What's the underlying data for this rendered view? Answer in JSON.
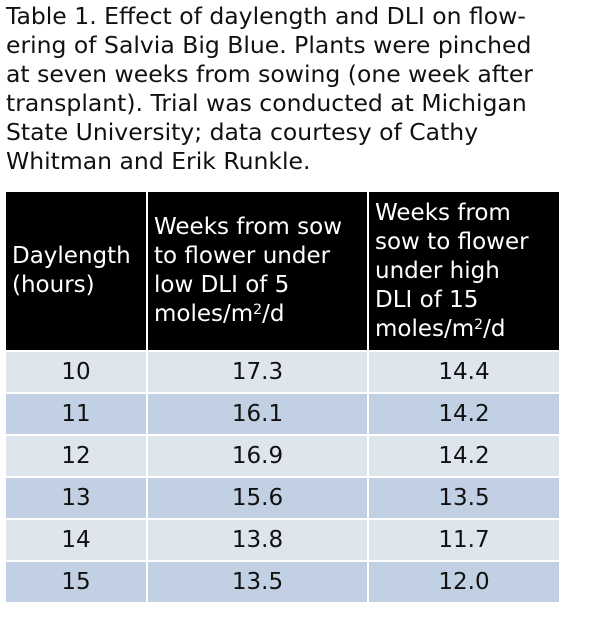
{
  "caption": {
    "lines": [
      "Table 1. Effect of daylength and DLI on flow-",
      "ering of Salvia Big Blue. Plants were pinched",
      "at seven weeks from sowing (one week after",
      "transplant). Trial was conducted at Michigan",
      "State University; data courtesy of Cathy",
      "Whitman and Erik Runkle."
    ]
  },
  "table": {
    "headers": {
      "col1": {
        "lines": [
          "Daylength",
          "(hours)"
        ]
      },
      "col2": {
        "lines": [
          "Weeks from sow",
          "to flower under",
          "low DLI of 5"
        ],
        "unit_pre": "moles/m",
        "unit_sup": "2",
        "unit_post": "/d"
      },
      "col3": {
        "lines": [
          "Weeks from",
          "sow to flower",
          "under high",
          "DLI of 15"
        ],
        "unit_pre": "moles/m",
        "unit_sup": "2",
        "unit_post": "/d"
      }
    },
    "rows": [
      {
        "daylength": "10",
        "low_dli": "17.3",
        "high_dli": "14.4"
      },
      {
        "daylength": "11",
        "low_dli": "16.1",
        "high_dli": "14.2"
      },
      {
        "daylength": "12",
        "low_dli": "16.9",
        "high_dli": "14.2"
      },
      {
        "daylength": "13",
        "low_dli": "15.6",
        "high_dli": "13.5"
      },
      {
        "daylength": "14",
        "low_dli": "13.8",
        "high_dli": "11.7"
      },
      {
        "daylength": "15",
        "low_dli": "13.5",
        "high_dli": "12.0"
      }
    ],
    "colors": {
      "header_bg": "#000000",
      "row_odd_bg": "#dfe5ed",
      "row_even_bg": "#c1d1e3"
    }
  }
}
